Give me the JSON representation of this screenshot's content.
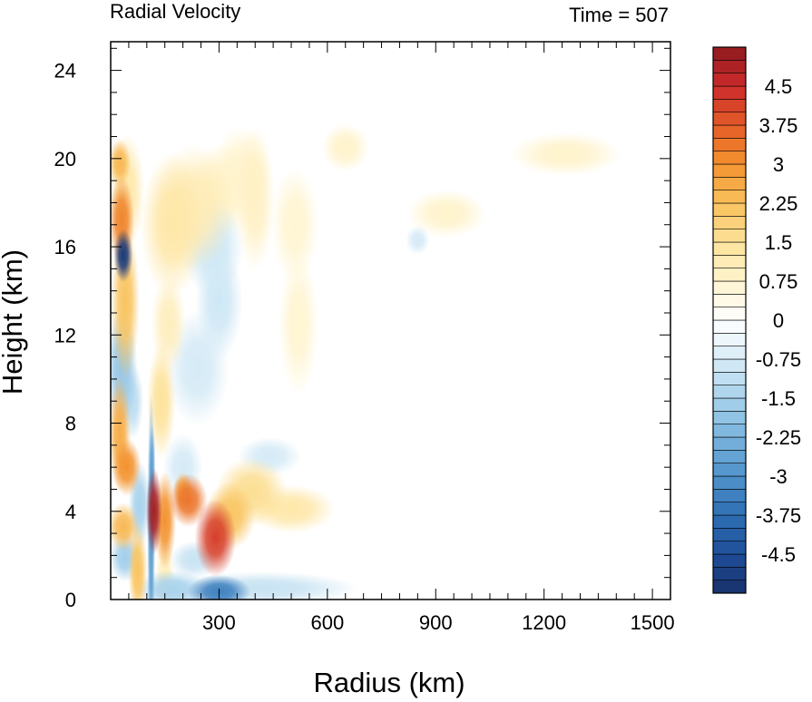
{
  "chart_data": {
    "type": "heatmap",
    "title_left": "Radial Velocity",
    "title_right": "Time = 507",
    "xlabel": "Radius (km)",
    "ylabel": "Height (km)",
    "xlim": [
      0,
      1550
    ],
    "ylim": [
      0,
      25.3
    ],
    "x_ticks": [
      300,
      600,
      900,
      1200,
      1500
    ],
    "x_tick_labels": [
      "300",
      "600",
      "900",
      "1200",
      "1500"
    ],
    "y_ticks": [
      0,
      4,
      8,
      12,
      16,
      20,
      24
    ],
    "y_tick_labels": [
      "0",
      "4",
      "8",
      "12",
      "16",
      "20",
      "24"
    ],
    "colorbar": {
      "min": -5.25,
      "max": 5.25,
      "step": 0.25,
      "label_values": [
        4.5,
        3.75,
        3,
        2.25,
        1.5,
        0.75,
        0,
        -0.75,
        -1.5,
        -2.25,
        -3,
        -3.75,
        -4.5
      ],
      "labels": [
        "4.5",
        "3.75",
        "3",
        "2.25",
        "1.5",
        "0.75",
        "0",
        "-0.75",
        "-1.5",
        "-2.25",
        "-3",
        "-3.75",
        "-4.5"
      ],
      "stops": [
        {
          "v": -5.25,
          "c": "#18306a"
        },
        {
          "v": -4.5,
          "c": "#1f4e9a"
        },
        {
          "v": -3.75,
          "c": "#2f6fb4"
        },
        {
          "v": -3.0,
          "c": "#4f93cb"
        },
        {
          "v": -2.25,
          "c": "#79b3dc"
        },
        {
          "v": -1.5,
          "c": "#a8d2ec"
        },
        {
          "v": -0.75,
          "c": "#d8ecf7"
        },
        {
          "v": 0.0,
          "c": "#ffffff"
        },
        {
          "v": 0.75,
          "c": "#fff4cf"
        },
        {
          "v": 1.5,
          "c": "#fde29a"
        },
        {
          "v": 2.25,
          "c": "#f9c25c"
        },
        {
          "v": 3.0,
          "c": "#f3922e"
        },
        {
          "v": 3.75,
          "c": "#e45c28"
        },
        {
          "v": 4.5,
          "c": "#cc2b2b"
        },
        {
          "v": 5.25,
          "c": "#8e1a1f"
        }
      ]
    },
    "features": [
      {
        "r": 35,
        "z": 15.6,
        "sr": 12,
        "sz": 0.55,
        "v": -5.0
      },
      {
        "r": 30,
        "z": 17.2,
        "sr": 16,
        "sz": 0.9,
        "v": 3.2
      },
      {
        "r": 25,
        "z": 19.8,
        "sr": 14,
        "sz": 0.5,
        "v": 2.4
      },
      {
        "r": 45,
        "z": 18.5,
        "sr": 22,
        "sz": 1.2,
        "v": 1.3
      },
      {
        "r": 40,
        "z": 13.5,
        "sr": 18,
        "sz": 1.6,
        "v": 2.2
      },
      {
        "r": 30,
        "z": 10.5,
        "sr": 20,
        "sz": 1.2,
        "v": -1.8
      },
      {
        "r": 25,
        "z": 7.5,
        "sr": 14,
        "sz": 1.2,
        "v": 2.6
      },
      {
        "r": 45,
        "z": 6.0,
        "sr": 18,
        "sz": 0.6,
        "v": 3.0
      },
      {
        "r": 60,
        "z": 9.0,
        "sr": 14,
        "sz": 0.8,
        "v": -1.2
      },
      {
        "r": 35,
        "z": 3.3,
        "sr": 20,
        "sz": 0.5,
        "v": 2.4
      },
      {
        "r": 40,
        "z": 1.9,
        "sr": 20,
        "sz": 0.5,
        "v": -1.6
      },
      {
        "r": 75,
        "z": 1.3,
        "sr": 12,
        "sz": 1.0,
        "v": 2.2
      },
      {
        "r": 80,
        "z": 4.3,
        "sr": 14,
        "sz": 0.9,
        "v": -1.5
      },
      {
        "r": 120,
        "z": 4.0,
        "sr": 10,
        "sz": 0.9,
        "v": 5.0
      },
      {
        "r": 112,
        "z": 3.2,
        "sr": 5,
        "sz": 2.8,
        "v": -2.8
      },
      {
        "r": 115,
        "z": 6.2,
        "sr": 4,
        "sz": 0.8,
        "v": -2.2
      },
      {
        "r": 150,
        "z": 3.6,
        "sr": 14,
        "sz": 1.0,
        "v": 3.0
      },
      {
        "r": 215,
        "z": 4.5,
        "sr": 24,
        "sz": 0.55,
        "v": 3.4
      },
      {
        "r": 200,
        "z": 4.9,
        "sr": 12,
        "sz": 0.4,
        "v": 2.5
      },
      {
        "r": 290,
        "z": 2.8,
        "sr": 26,
        "sz": 0.8,
        "v": 4.2
      },
      {
        "r": 330,
        "z": 3.8,
        "sr": 32,
        "sz": 0.7,
        "v": 2.2
      },
      {
        "r": 390,
        "z": 4.9,
        "sr": 45,
        "sz": 0.7,
        "v": 1.6
      },
      {
        "r": 500,
        "z": 4.1,
        "sr": 55,
        "sz": 0.5,
        "v": 1.3
      },
      {
        "r": 440,
        "z": 6.5,
        "sr": 40,
        "sz": 0.4,
        "v": -0.8
      },
      {
        "r": 300,
        "z": 0.35,
        "sr": 40,
        "sz": 0.35,
        "v": -3.4
      },
      {
        "r": 170,
        "z": 0.45,
        "sr": 45,
        "sz": 0.4,
        "v": -1.5
      },
      {
        "r": 420,
        "z": 0.5,
        "sr": 120,
        "sz": 0.35,
        "v": -1.0
      },
      {
        "r": 230,
        "z": 1.8,
        "sr": 30,
        "sz": 0.4,
        "v": -1.0
      },
      {
        "r": 150,
        "z": 1.0,
        "sr": 12,
        "sz": 0.9,
        "v": 1.0
      },
      {
        "r": 200,
        "z": 6.0,
        "sr": 25,
        "sz": 0.7,
        "v": -0.8
      },
      {
        "r": 140,
        "z": 9.0,
        "sr": 18,
        "sz": 1.2,
        "v": 1.5
      },
      {
        "r": 160,
        "z": 12.5,
        "sr": 22,
        "sz": 1.0,
        "v": 1.0
      },
      {
        "r": 170,
        "z": 17.0,
        "sr": 40,
        "sz": 1.5,
        "v": 1.3
      },
      {
        "r": 230,
        "z": 17.8,
        "sr": 50,
        "sz": 1.3,
        "v": 1.1
      },
      {
        "r": 310,
        "z": 18.5,
        "sr": 45,
        "sz": 1.0,
        "v": 0.8
      },
      {
        "r": 400,
        "z": 18.2,
        "sr": 25,
        "sz": 1.5,
        "v": 0.9
      },
      {
        "r": 360,
        "z": 19.5,
        "sr": 35,
        "sz": 0.9,
        "v": 0.7
      },
      {
        "r": 510,
        "z": 17.0,
        "sr": 30,
        "sz": 1.2,
        "v": 0.7
      },
      {
        "r": 520,
        "z": 12.5,
        "sr": 25,
        "sz": 1.5,
        "v": 0.7
      },
      {
        "r": 300,
        "z": 13.5,
        "sr": 30,
        "sz": 1.2,
        "v": -0.9
      },
      {
        "r": 280,
        "z": 16.0,
        "sr": 40,
        "sz": 1.0,
        "v": -0.9
      },
      {
        "r": 240,
        "z": 10.5,
        "sr": 40,
        "sz": 1.2,
        "v": -0.8
      },
      {
        "r": 650,
        "z": 20.5,
        "sr": 30,
        "sz": 0.5,
        "v": 0.8
      },
      {
        "r": 930,
        "z": 17.5,
        "sr": 50,
        "sz": 0.5,
        "v": 0.8
      },
      {
        "r": 1260,
        "z": 20.2,
        "sr": 70,
        "sz": 0.45,
        "v": 0.8
      },
      {
        "r": 850,
        "z": 16.3,
        "sr": 15,
        "sz": 0.3,
        "v": -0.8
      }
    ]
  }
}
